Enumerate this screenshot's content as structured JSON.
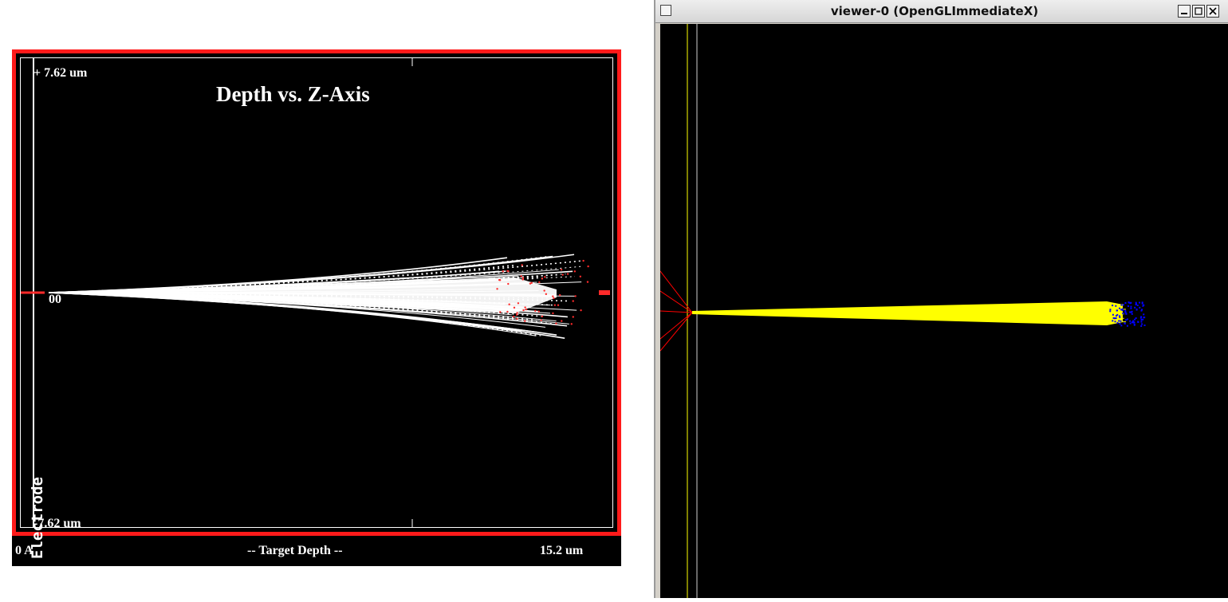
{
  "plot": {
    "title": "Depth vs. Z-Axis",
    "y_top_label": "+ 7.62 um",
    "y_bottom_label": "-7.62 um",
    "origin_label": "00",
    "vertical_axis_label": "Electrode",
    "x_left_label": "0 A",
    "x_center_label": "-- Target Depth --",
    "x_right_label": "15.2 um",
    "colors": {
      "frame": "#ff1a1a",
      "background": "#000000",
      "tracks": "#ffffff",
      "end_points": "#ff2a2a"
    }
  },
  "viewer": {
    "window_title": "viewer-0 (OpenGLImmediateX)",
    "minimize_icon": "minimize-icon",
    "maximize_icon": "maximize-icon",
    "close_icon": "close-icon",
    "colors": {
      "background": "#000000",
      "beam": "#ffff00",
      "target_line": "#ffff00",
      "source_lines": "#ff0000",
      "end_cluster": "#0000ff"
    }
  }
}
